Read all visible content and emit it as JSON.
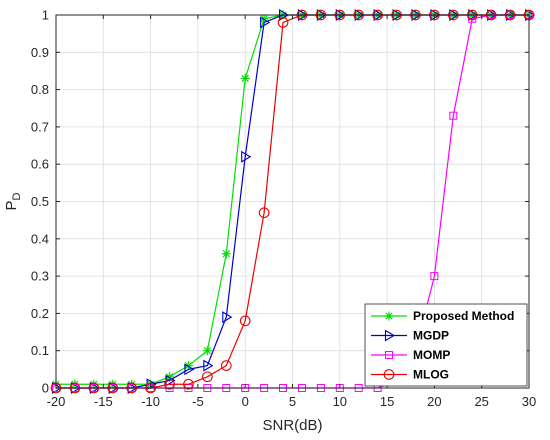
{
  "chart_data": {
    "type": "line",
    "xlabel": "SNR(dB)",
    "ylabel_main": "P",
    "ylabel_sub": "D",
    "xlim": [
      -20,
      30
    ],
    "ylim": [
      0,
      1
    ],
    "xticks": [
      "-20",
      "-15",
      "-10",
      "-5",
      "0",
      "5",
      "10",
      "15",
      "20",
      "25",
      "30"
    ],
    "yticks": [
      "0",
      "0.1",
      "0.2",
      "0.3",
      "0.4",
      "0.5",
      "0.6",
      "0.7",
      "0.8",
      "0.9",
      "1"
    ],
    "grid": true,
    "legend_position": "bottom-right",
    "x": [
      -20,
      -18,
      -16,
      -14,
      -12,
      -10,
      -8,
      -6,
      -4,
      -2,
      0,
      2,
      4,
      6,
      8,
      10,
      12,
      14,
      16,
      18,
      20,
      22,
      24,
      26,
      28,
      30
    ],
    "series": [
      {
        "name": "Proposed Method",
        "color": "#00e000",
        "marker": "star",
        "values": [
          0.01,
          0.01,
          0.01,
          0.01,
          0.01,
          0.01,
          0.03,
          0.06,
          0.1,
          0.36,
          0.83,
          0.99,
          1,
          1,
          1,
          1,
          1,
          1,
          1,
          1,
          1,
          1,
          1,
          1,
          1,
          1
        ]
      },
      {
        "name": "MGDP",
        "color": "#0000cc",
        "marker": "triangle-right",
        "values": [
          0,
          0,
          0,
          0,
          0,
          0.01,
          0.02,
          0.05,
          0.06,
          0.19,
          0.62,
          0.98,
          1,
          1,
          1,
          1,
          1,
          1,
          1,
          1,
          1,
          1,
          1,
          1,
          1,
          1
        ]
      },
      {
        "name": "MOMP",
        "color": "#ff00ff",
        "marker": "square",
        "values": [
          0,
          0,
          0,
          0,
          0,
          0,
          0,
          0,
          0,
          0,
          0,
          0,
          0,
          0,
          0,
          0,
          0,
          0,
          0.02,
          0.1,
          0.3,
          0.73,
          0.99,
          1,
          1,
          1
        ]
      },
      {
        "name": "MLOG",
        "color": "#ee0000",
        "marker": "circle",
        "values": [
          0,
          0,
          0,
          0,
          0,
          0,
          0.01,
          0.01,
          0.03,
          0.06,
          0.18,
          0.47,
          0.98,
          1,
          1,
          1,
          1,
          1,
          1,
          1,
          1,
          1,
          1,
          1,
          1,
          1
        ]
      }
    ]
  }
}
